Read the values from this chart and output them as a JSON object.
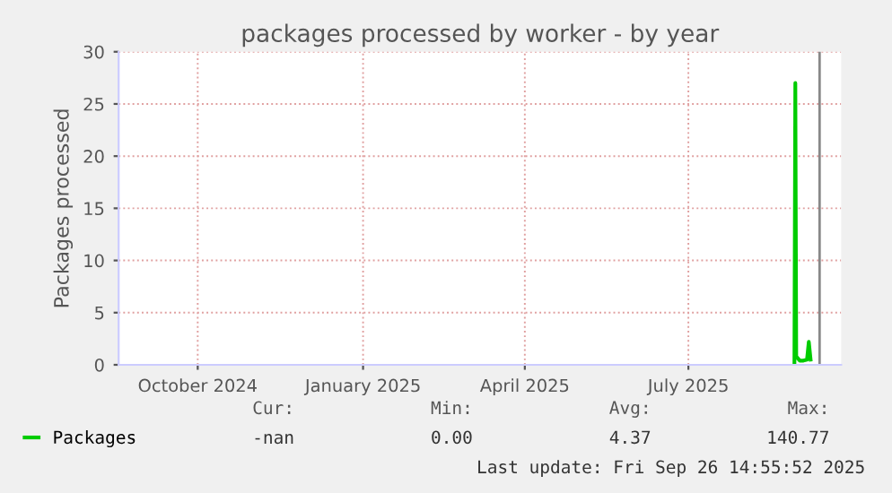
{
  "chart_data": {
    "type": "line",
    "title": "packages processed by worker - by year",
    "ylabel": "Packages processed",
    "x": [
      "2025-09-12",
      "2025-09-12T12:00",
      "2025-09-13",
      "2025-09-15",
      "2025-09-17",
      "2025-09-19",
      "2025-09-20",
      "2025-09-21"
    ],
    "series": [
      {
        "name": "Packages",
        "color": "#00cc00",
        "values": [
          0,
          27,
          0.8,
          0.4,
          0.4,
          0.5,
          2.2,
          0.5
        ]
      }
    ],
    "xlim": [
      "2024-09-01",
      "2025-10-08"
    ],
    "xticks": [
      {
        "value": "2024-10-15",
        "label": "October 2024"
      },
      {
        "value": "2025-01-15",
        "label": "January 2025"
      },
      {
        "value": "2025-04-15",
        "label": "April 2025"
      },
      {
        "value": "2025-07-15",
        "label": "July 2025"
      }
    ],
    "ylim": [
      0,
      30
    ],
    "yticks": [
      0,
      5,
      10,
      15,
      20,
      25,
      30
    ],
    "ref_lines": [
      {
        "axis": "x",
        "value": "2025-09-26",
        "color": "#888888"
      }
    ],
    "grid": true,
    "legend": "bottom left",
    "annotations": [
      "Cur:",
      "Min:",
      "Avg:",
      "Max:",
      "-nan",
      "0.00",
      "4.37",
      "140.77",
      "Last update: Fri Sep 26 14:55:52 2025"
    ]
  }
}
